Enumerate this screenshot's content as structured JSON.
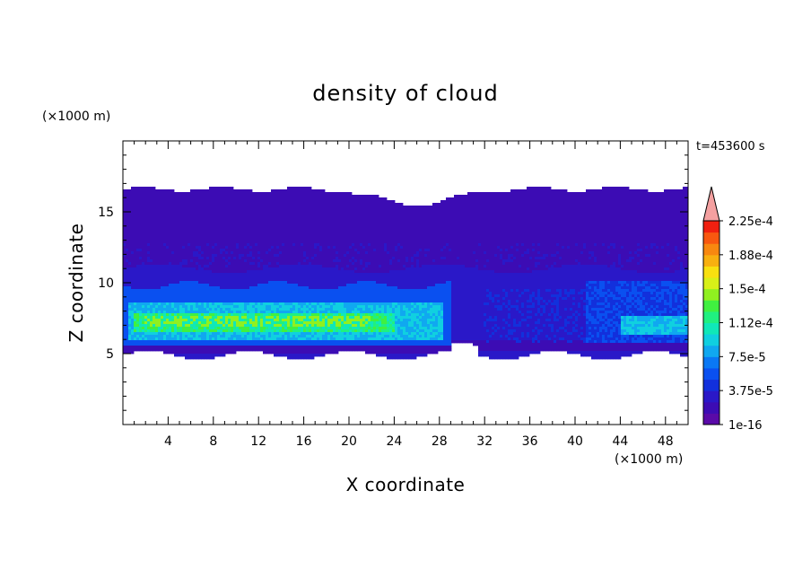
{
  "chart_data": {
    "type": "heatmap",
    "title": "density of cloud",
    "time_label": "t=453600 s",
    "xlabel": "X coordinate",
    "ylabel": "Z coordinate",
    "x_unit": "(×1000 m)",
    "y_unit": "(×1000 m)",
    "xlim": [
      0,
      50
    ],
    "ylim": [
      0,
      20
    ],
    "x_ticks": [
      "4",
      "8",
      "12",
      "16",
      "20",
      "24",
      "28",
      "32",
      "36",
      "40",
      "44",
      "48"
    ],
    "y_ticks": [
      "5",
      "10",
      "15"
    ],
    "colorbar": {
      "labels": [
        "1e-16",
        "3.75e-5",
        "7.5e-5",
        "1.12e-4",
        "1.5e-4",
        "1.88e-4",
        "2.25e-4"
      ],
      "colors": [
        "#5a0aa8",
        "#3c0cb4",
        "#2a18c8",
        "#1230dc",
        "#0a50f0",
        "#0a78f4",
        "#10a8f0",
        "#10d0e0",
        "#10e8b8",
        "#20f080",
        "#40f040",
        "#90f020",
        "#d8f018",
        "#f8e010",
        "#f8b010",
        "#f88810",
        "#f85810",
        "#f02010"
      ],
      "extend_color": "#f4a0a0"
    },
    "regions": [
      {
        "level": "1e-16",
        "x_range": [
          0,
          50
        ],
        "z_range": [
          4.5,
          17.3
        ],
        "description_z_top_dip_at_x": 26
      },
      {
        "level": "3.75e-5",
        "x_range": [
          0,
          50
        ],
        "z_range": [
          5.0,
          11.2
        ]
      },
      {
        "level": "7.5e-5",
        "x_range": [
          0,
          29
        ],
        "z_range": [
          5.5,
          9.8
        ]
      },
      {
        "level": "1.12e-4",
        "x_range": [
          1,
          28
        ],
        "z_range": [
          6.3,
          8.2
        ]
      },
      {
        "level": "1.5e-4",
        "x_range": [
          1,
          23
        ],
        "z_range": [
          6.8,
          7.8
        ]
      },
      {
        "level": "7.5e-5",
        "x_range": [
          41,
          50
        ],
        "z_range": [
          5.8,
          10.2
        ]
      },
      {
        "level": "1.12e-4",
        "x_range": [
          44,
          50
        ],
        "z_range": [
          6.3,
          7.6
        ]
      }
    ]
  }
}
